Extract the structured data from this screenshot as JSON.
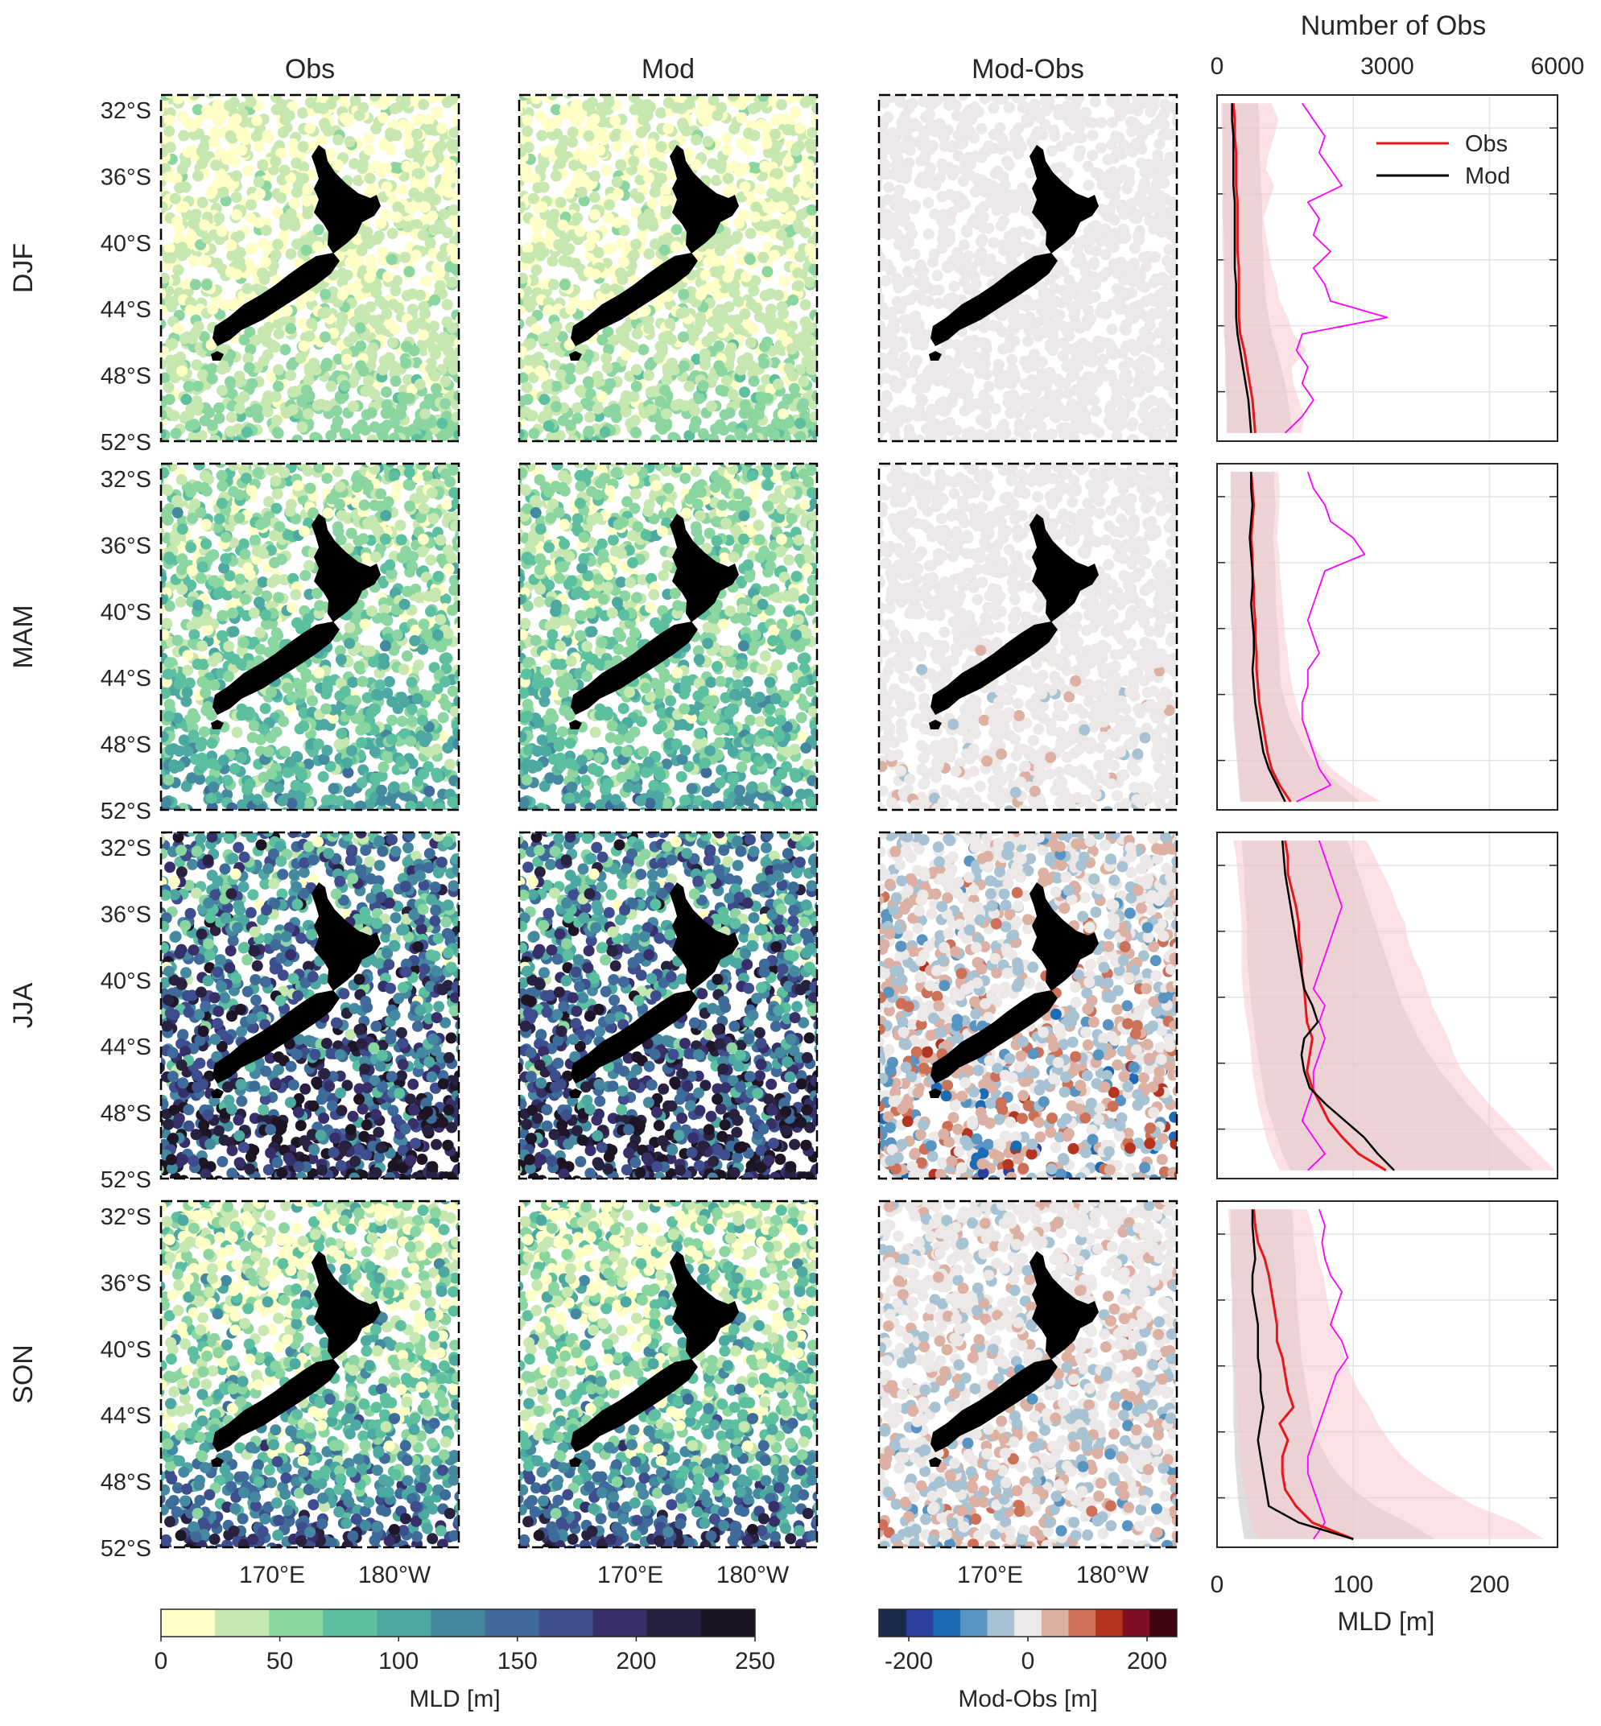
{
  "figure": {
    "column_titles": [
      "Obs",
      "Mod",
      "Mod-Obs"
    ],
    "row_labels": [
      "DJF",
      "MAM",
      "JJA",
      "SON"
    ],
    "lat_ticks": [
      "32°S",
      "36°S",
      "40°S",
      "44°S",
      "48°S",
      "52°S"
    ],
    "lon_ticks": [
      "170°E",
      "180°W"
    ],
    "colors": {
      "land": "#000000",
      "obs_line": "#e8161b",
      "mod_line": "#000000",
      "count_line": "#ff00ff",
      "obs_band": "#f7c9cc",
      "mod_band": "#c8c8c8"
    }
  },
  "colorbars": {
    "mld": {
      "label": "MLD [m]",
      "ticks": [
        "0",
        "50",
        "100",
        "150",
        "200",
        "250"
      ],
      "range": [
        0,
        250
      ],
      "colors": [
        "#fefec6",
        "#c6e7b0",
        "#8bd5a0",
        "#5cc0a0",
        "#4ea8a2",
        "#44899f",
        "#3f6b9b",
        "#3e4d8d",
        "#362f6a",
        "#28213f",
        "#1d1424"
      ]
    },
    "diff": {
      "label": "Mod-Obs [m]",
      "ticks": [
        "-200",
        "0",
        "200"
      ],
      "range": [
        -250,
        250
      ],
      "colors": [
        "#1b2a4a",
        "#2a3f9e",
        "#1d6ab5",
        "#5894c1",
        "#a7c2d2",
        "#ebe8e7",
        "#dcb1a3",
        "#cc7157",
        "#b3341f",
        "#7f1023",
        "#3f0611"
      ]
    }
  },
  "chart_data": {
    "type": "line",
    "top_axis": {
      "label": "Number of Obs",
      "ticks": [
        "0",
        "3000",
        "6000"
      ],
      "range": [
        0,
        6000
      ]
    },
    "bottom_axis": {
      "label": "MLD [m]",
      "ticks": [
        "0",
        "100",
        "200"
      ],
      "range": [
        0,
        250
      ]
    },
    "legend": {
      "entries": [
        "Obs",
        "Mod"
      ],
      "placement": "top-right"
    },
    "grid": true,
    "depth_bins_lat": [
      31.5,
      32.5,
      33.5,
      34.5,
      35.5,
      36.5,
      37.5,
      38.5,
      39.5,
      40.5,
      41.5,
      42.5,
      43.5,
      44.5,
      45.5,
      46.5,
      47.5,
      48.5,
      49.5,
      50.5,
      51.5
    ],
    "panels": [
      {
        "season": "DJF",
        "obs": [
          12,
          13,
          13,
          14,
          14,
          14,
          15,
          15,
          15,
          15,
          16,
          16,
          16,
          16,
          17,
          20,
          22,
          24,
          26,
          27,
          28
        ],
        "mod": [
          11,
          11,
          12,
          12,
          12,
          12,
          13,
          13,
          13,
          13,
          13,
          14,
          14,
          14,
          15,
          17,
          19,
          21,
          23,
          24,
          25
        ],
        "obs_band": [
          [
            3,
            40
          ],
          [
            3,
            45
          ],
          [
            4,
            42
          ],
          [
            4,
            38
          ],
          [
            4,
            36
          ],
          [
            4,
            42
          ],
          [
            4,
            38
          ],
          [
            4,
            34
          ],
          [
            4,
            36
          ],
          [
            4,
            38
          ],
          [
            5,
            40
          ],
          [
            5,
            44
          ],
          [
            5,
            46
          ],
          [
            5,
            52
          ],
          [
            6,
            56
          ],
          [
            6,
            66
          ],
          [
            7,
            55
          ],
          [
            7,
            56
          ],
          [
            8,
            60
          ],
          [
            8,
            64
          ],
          [
            8,
            62
          ]
        ],
        "mod_band": [
          [
            4,
            30
          ],
          [
            4,
            31
          ],
          [
            4,
            31
          ],
          [
            4,
            31
          ],
          [
            4,
            32
          ],
          [
            4,
            32
          ],
          [
            4,
            33
          ],
          [
            4,
            33
          ],
          [
            5,
            33
          ],
          [
            5,
            34
          ],
          [
            5,
            34
          ],
          [
            5,
            35
          ],
          [
            5,
            36
          ],
          [
            5,
            38
          ],
          [
            5,
            40
          ],
          [
            6,
            44
          ],
          [
            6,
            47
          ],
          [
            6,
            50
          ],
          [
            7,
            52
          ],
          [
            7,
            54
          ],
          [
            7,
            55
          ]
        ],
        "count": [
          1500,
          1700,
          1900,
          1800,
          2000,
          2200,
          1600,
          1800,
          1700,
          2000,
          1700,
          1900,
          2000,
          3000,
          1500,
          1400,
          1600,
          1500,
          1700,
          1500,
          1200
        ]
      },
      {
        "season": "MAM",
        "obs": [
          25,
          26,
          27,
          26,
          25,
          26,
          26,
          27,
          27,
          28,
          28,
          29,
          29,
          30,
          31,
          33,
          35,
          37,
          40,
          46,
          54
        ],
        "mod": [
          25,
          25,
          26,
          25,
          24,
          25,
          26,
          26,
          25,
          26,
          27,
          27,
          26,
          27,
          28,
          30,
          32,
          34,
          38,
          44,
          50
        ],
        "obs_band": [
          [
            10,
            45
          ],
          [
            10,
            46
          ],
          [
            11,
            46
          ],
          [
            10,
            45
          ],
          [
            10,
            44
          ],
          [
            10,
            46
          ],
          [
            10,
            46
          ],
          [
            11,
            47
          ],
          [
            11,
            48
          ],
          [
            11,
            49
          ],
          [
            11,
            50
          ],
          [
            12,
            52
          ],
          [
            12,
            53
          ],
          [
            12,
            55
          ],
          [
            13,
            58
          ],
          [
            13,
            62
          ],
          [
            14,
            68
          ],
          [
            15,
            74
          ],
          [
            16,
            84
          ],
          [
            17,
            100
          ],
          [
            18,
            120
          ]
        ],
        "mod_band": [
          [
            10,
            42
          ],
          [
            10,
            42
          ],
          [
            10,
            43
          ],
          [
            10,
            42
          ],
          [
            10,
            41
          ],
          [
            10,
            42
          ],
          [
            10,
            43
          ],
          [
            10,
            43
          ],
          [
            10,
            43
          ],
          [
            10,
            44
          ],
          [
            11,
            45
          ],
          [
            11,
            46
          ],
          [
            11,
            46
          ],
          [
            11,
            47
          ],
          [
            12,
            50
          ],
          [
            12,
            54
          ],
          [
            13,
            60
          ],
          [
            14,
            66
          ],
          [
            15,
            76
          ],
          [
            16,
            90
          ],
          [
            17,
            105
          ]
        ],
        "count": [
          1600,
          1700,
          1900,
          2000,
          2400,
          2600,
          1900,
          1800,
          1700,
          1600,
          1700,
          1800,
          1600,
          1600,
          1500,
          1500,
          1600,
          1700,
          1800,
          2000,
          1400
        ]
      },
      {
        "season": "JJA",
        "obs": [
          50,
          52,
          52,
          55,
          58,
          60,
          60,
          62,
          62,
          64,
          65,
          66,
          70,
          68,
          66,
          70,
          76,
          82,
          92,
          104,
          124
        ],
        "mod": [
          48,
          49,
          50,
          52,
          54,
          56,
          58,
          60,
          62,
          64,
          70,
          74,
          64,
          62,
          64,
          68,
          80,
          94,
          108,
          118,
          130
        ],
        "obs_band": [
          [
            12,
            110
          ],
          [
            14,
            116
          ],
          [
            15,
            122
          ],
          [
            16,
            128
          ],
          [
            17,
            132
          ],
          [
            18,
            138
          ],
          [
            18,
            140
          ],
          [
            18,
            144
          ],
          [
            18,
            150
          ],
          [
            19,
            154
          ],
          [
            20,
            158
          ],
          [
            22,
            164
          ],
          [
            24,
            170
          ],
          [
            25,
            174
          ],
          [
            26,
            180
          ],
          [
            28,
            190
          ],
          [
            30,
            200
          ],
          [
            33,
            212
          ],
          [
            36,
            224
          ],
          [
            40,
            236
          ],
          [
            46,
            248
          ]
        ],
        "mod_band": [
          [
            18,
            96
          ],
          [
            19,
            100
          ],
          [
            20,
            104
          ],
          [
            20,
            108
          ],
          [
            21,
            112
          ],
          [
            22,
            116
          ],
          [
            22,
            120
          ],
          [
            22,
            124
          ],
          [
            23,
            128
          ],
          [
            24,
            132
          ],
          [
            25,
            136
          ],
          [
            27,
            142
          ],
          [
            28,
            148
          ],
          [
            30,
            156
          ],
          [
            32,
            164
          ],
          [
            34,
            174
          ],
          [
            36,
            184
          ],
          [
            40,
            196
          ],
          [
            44,
            206
          ],
          [
            48,
            218
          ],
          [
            54,
            232
          ]
        ],
        "count": [
          1800,
          1900,
          2000,
          2100,
          2200,
          2100,
          2000,
          1900,
          1800,
          1700,
          1900,
          1800,
          1900,
          1800,
          1700,
          1700,
          1600,
          1500,
          1700,
          1900,
          1600
        ]
      },
      {
        "season": "SON",
        "obs": [
          27,
          28,
          30,
          35,
          38,
          40,
          42,
          44,
          44,
          48,
          50,
          52,
          56,
          46,
          52,
          48,
          48,
          50,
          58,
          70,
          100
        ],
        "mod": [
          26,
          26,
          27,
          28,
          26,
          26,
          28,
          30,
          30,
          30,
          32,
          32,
          34,
          32,
          30,
          32,
          34,
          36,
          38,
          60,
          100
        ],
        "obs_band": [
          [
            8,
            66
          ],
          [
            9,
            70
          ],
          [
            10,
            72
          ],
          [
            10,
            74
          ],
          [
            11,
            78
          ],
          [
            11,
            80
          ],
          [
            12,
            82
          ],
          [
            12,
            86
          ],
          [
            13,
            90
          ],
          [
            13,
            94
          ],
          [
            14,
            98
          ],
          [
            14,
            104
          ],
          [
            15,
            112
          ],
          [
            15,
            118
          ],
          [
            16,
            126
          ],
          [
            17,
            136
          ],
          [
            18,
            150
          ],
          [
            20,
            168
          ],
          [
            22,
            190
          ],
          [
            25,
            220
          ],
          [
            30,
            240
          ]
        ],
        "mod_band": [
          [
            10,
            55
          ],
          [
            10,
            56
          ],
          [
            10,
            56
          ],
          [
            10,
            57
          ],
          [
            10,
            58
          ],
          [
            11,
            58
          ],
          [
            11,
            59
          ],
          [
            11,
            60
          ],
          [
            11,
            61
          ],
          [
            11,
            62
          ],
          [
            12,
            64
          ],
          [
            12,
            66
          ],
          [
            12,
            68
          ],
          [
            12,
            70
          ],
          [
            13,
            74
          ],
          [
            13,
            80
          ],
          [
            14,
            88
          ],
          [
            15,
            100
          ],
          [
            16,
            116
          ],
          [
            18,
            140
          ],
          [
            20,
            160
          ]
        ],
        "count": [
          1800,
          1900,
          1850,
          1900,
          2000,
          2200,
          2100,
          2000,
          2200,
          2300,
          2100,
          2000,
          1900,
          1800,
          1700,
          1600,
          1600,
          1700,
          1800,
          1900,
          1700
        ]
      }
    ]
  }
}
